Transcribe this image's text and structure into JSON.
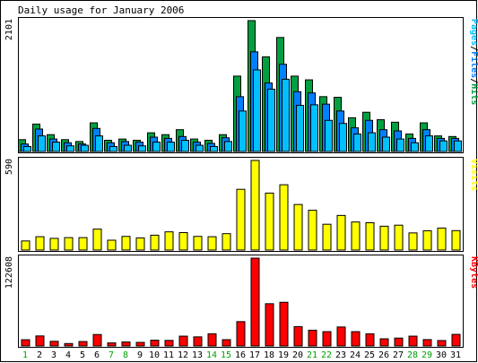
{
  "title": "Daily usage for January 2006",
  "colors": {
    "background": "#ffffff",
    "panel_border": "#000000",
    "hits": "#00a040",
    "files": "#0080ff",
    "pages": "#00c0ff",
    "visits": "#ffff00",
    "kbytes": "#ff0000",
    "weekday_label": "#000000",
    "weekend_label": "#00a000"
  },
  "chart_data": {
    "type": "bar",
    "title": "Daily usage for January 2006",
    "x": [
      1,
      2,
      3,
      4,
      5,
      6,
      7,
      8,
      9,
      10,
      11,
      12,
      13,
      14,
      15,
      16,
      17,
      18,
      19,
      20,
      21,
      22,
      23,
      24,
      25,
      26,
      27,
      28,
      29,
      30,
      31
    ],
    "weekend_days": [
      1,
      7,
      8,
      14,
      15,
      21,
      22,
      28,
      29
    ],
    "panels": [
      {
        "name": "usage",
        "ylabel_parts": [
          {
            "text": "Pages",
            "color": "#00c0ff"
          },
          {
            "text": "/",
            "color": "#000000"
          },
          {
            "text": "Files",
            "color": "#0080ff"
          },
          {
            "text": "/",
            "color": "#000000"
          },
          {
            "text": "Hits",
            "color": "#00a040"
          }
        ],
        "ymax_label": "2101",
        "ylim": [
          0,
          2101
        ],
        "series": [
          {
            "name": "Hits",
            "color": "#00a040",
            "values": [
              190,
              440,
              270,
              190,
              160,
              460,
              180,
              200,
              180,
              300,
              270,
              350,
              200,
              180,
              270,
              1210,
              2101,
              1520,
              1830,
              1210,
              1150,
              880,
              870,
              540,
              630,
              510,
              470,
              280,
              460,
              250,
              240
            ]
          },
          {
            "name": "Files",
            "color": "#0080ff",
            "values": [
              120,
              360,
              200,
              140,
              120,
              370,
              140,
              160,
              150,
              230,
              210,
              240,
              150,
              130,
              220,
              880,
              1600,
              1100,
              1400,
              960,
              940,
              760,
              650,
              380,
              500,
              350,
              330,
              210,
              350,
              210,
              210
            ]
          },
          {
            "name": "Pages",
            "color": "#00c0ff",
            "values": [
              80,
              250,
              150,
              90,
              100,
              250,
              80,
              100,
              90,
              150,
              150,
              180,
              100,
              80,
              160,
              650,
              1310,
              1000,
              1160,
              740,
              750,
              500,
              450,
              280,
              300,
              230,
              200,
              140,
              250,
              170,
              170
            ]
          }
        ]
      },
      {
        "name": "visits",
        "ylabel_parts": [
          {
            "text": "Visits",
            "color": "#ffff00"
          }
        ],
        "ymax_label": "590",
        "ylim": [
          0,
          590
        ],
        "series": [
          {
            "name": "Visits",
            "color": "#ffff00",
            "values": [
              60,
              88,
              77,
              82,
              82,
              138,
              65,
              90,
              80,
              98,
              120,
              115,
              90,
              88,
              108,
              400,
              590,
              375,
              430,
              300,
              262,
              170,
              228,
              185,
              180,
              157,
              164,
              113,
              127,
              145,
              128
            ]
          }
        ]
      },
      {
        "name": "kbytes",
        "ylabel_parts": [
          {
            "text": "KBytes",
            "color": "#ff0000"
          }
        ],
        "ymax_label": "122608",
        "ylim": [
          0,
          122608
        ],
        "series": [
          {
            "name": "KBytes",
            "color": "#ff0000",
            "values": [
              8700,
              14000,
              6500,
              3400,
              6200,
              16000,
              4300,
              5600,
              5000,
              8100,
              7800,
              13700,
              12700,
              17000,
              8800,
              34000,
              122608,
              59000,
              61000,
              27000,
              22000,
              20000,
              26500,
              20000,
              17000,
              10000,
              11000,
              13700,
              8900,
              7600,
              16200
            ]
          }
        ]
      }
    ]
  }
}
